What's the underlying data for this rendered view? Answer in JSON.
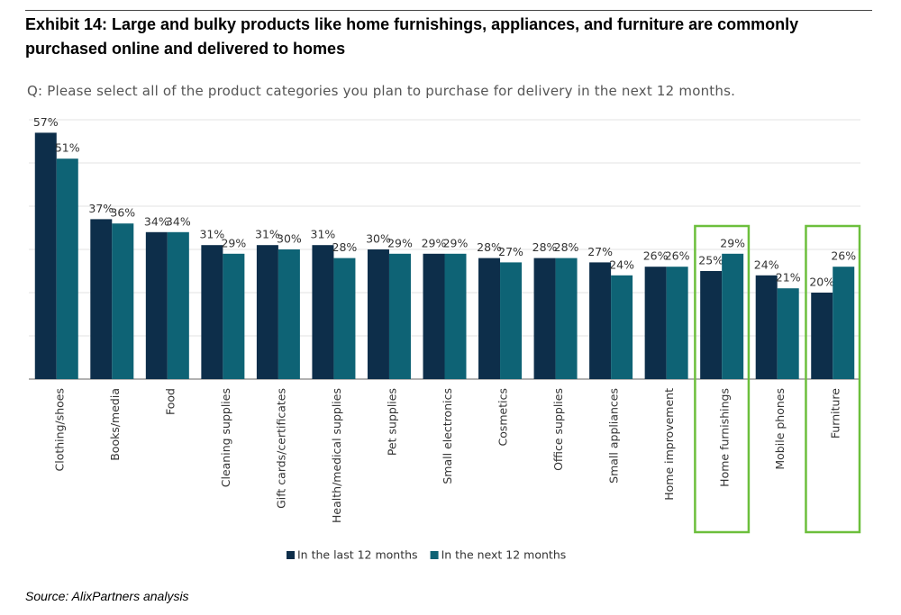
{
  "chart_data": {
    "type": "bar",
    "title": "Exhibit 14: Large and bulky products like home furnishings, appliances, and furniture are commonly purchased online and delivered to homes",
    "subtitle": "Q: Please select all of the product categories you plan to purchase for delivery in the next 12 months.",
    "source": "Source: AlixPartners analysis",
    "categories": [
      "Clothing/shoes",
      "Books/media",
      "Food",
      "Cleaning supplies",
      "Gift cards/certificates",
      "Health/medical supplies",
      "Pet supplies",
      "Small electronics",
      "Cosmetics",
      "Office supplies",
      "Small appliances",
      "Home improvement",
      "Home furnishings",
      "Mobile phones",
      "Furniture"
    ],
    "series": [
      {
        "name": "In the last 12 months",
        "color": "#0d2e4a",
        "values": [
          57,
          37,
          34,
          31,
          31,
          31,
          30,
          29,
          28,
          28,
          27,
          26,
          25,
          24,
          20
        ],
        "value_labels": [
          "57%",
          "37%",
          "34%",
          "31%",
          "31%",
          "31%",
          "30%",
          "29%",
          "28%",
          "28%",
          "27%",
          "26%",
          "25%",
          "24%",
          "20%"
        ]
      },
      {
        "name": "In the next 12 months",
        "color": "#0e6375",
        "values": [
          51,
          36,
          34,
          29,
          30,
          28,
          29,
          29,
          27,
          28,
          24,
          26,
          29,
          21,
          26
        ],
        "value_labels": [
          "51%",
          "36%",
          "34%",
          "29%",
          "30%",
          "28%",
          "29%",
          "29%",
          "27%",
          "28%",
          "24%",
          "26%",
          "29%",
          "21%",
          "26%"
        ]
      }
    ],
    "ylim": [
      0,
      60
    ],
    "yticks": [
      0,
      10,
      20,
      30,
      40,
      50,
      60
    ],
    "grid": true,
    "highlight": [
      12,
      14
    ],
    "highlight_color": "#6cbf3c"
  }
}
